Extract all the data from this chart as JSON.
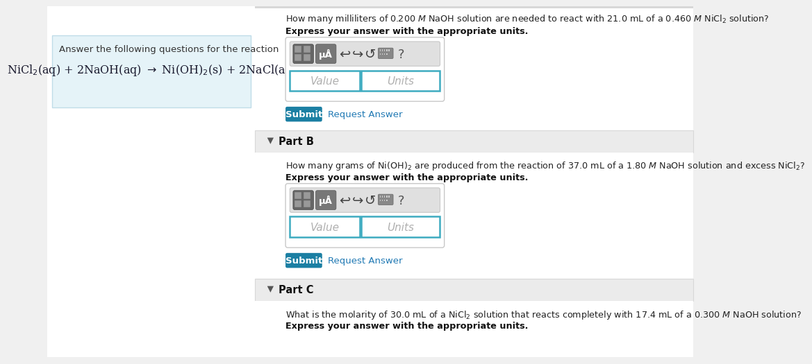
{
  "bg_color": "#f0f0f0",
  "white": "#ffffff",
  "light_blue_box_bg": "#e5f3f8",
  "light_blue_box_border": "#c0dce8",
  "teal_btn": "#1b7fa3",
  "link_blue": "#2079b4",
  "gray_section_bg": "#ebebeb",
  "gray_border": "#cccccc",
  "input_border": "#3dabc0",
  "toolbar_bg": "#e0e0e0",
  "toolbar_border": "#c8c8c8",
  "left_box_title": "Answer the following questions for the reaction",
  "partA_question": "How many milliliters of 0.200 $M$ NaOH solution are needed to react with 21.0 mL of a 0.460 $M$ NiCl$_2$ solution?",
  "partA_bold": "Express your answer with the appropriate units.",
  "partB_label": "Part B",
  "partB_question": "How many grams of Ni(OH)$_2$ are produced from the reaction of 37.0 mL of a 1.80 $M$ NaOH solution and excess NiCl$_2$?",
  "partB_bold": "Express your answer with the appropriate units.",
  "partC_label": "Part C",
  "partC_question": "What is the molarity of 30.0 mL of a NiCl$_2$ solution that reacts completely with 17.4 mL of a 0.300 $M$ NaOH solution?",
  "partC_bold": "Express your answer with the appropriate units.",
  "submit_text": "Submit",
  "request_text": "Request Answer",
  "value_placeholder": "Value",
  "units_placeholder": "Units"
}
